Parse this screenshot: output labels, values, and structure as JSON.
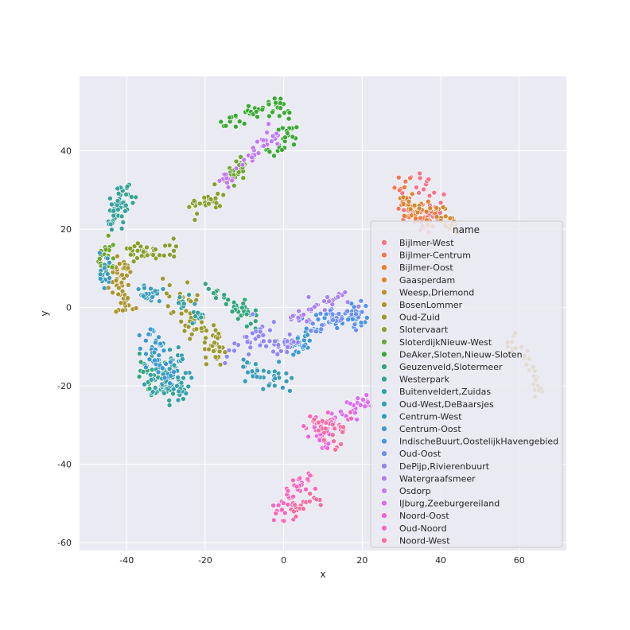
{
  "chart_data": {
    "type": "scatter",
    "xlabel": "x",
    "ylabel": "y",
    "xlim": [
      -52,
      72
    ],
    "ylim": [
      -62,
      59
    ],
    "xticks": [
      -40,
      -20,
      0,
      20,
      40,
      60
    ],
    "yticks": [
      -60,
      -40,
      -20,
      0,
      20,
      40
    ],
    "grid": true,
    "background": "#eaeaf2",
    "legend": {
      "title": "name",
      "placement": "right"
    },
    "series": [
      {
        "name": "Bijlmer-West",
        "color": "#f77189",
        "clusters": [
          {
            "path": [
              [
                30,
                35
              ],
              [
                34,
                33
              ],
              [
                38,
                28
              ],
              [
                40,
                25
              ],
              [
                37,
                22
              ],
              [
                32,
                24
              ],
              [
                30,
                28
              ]
            ],
            "spread": 1.6,
            "n": 40
          }
        ]
      },
      {
        "name": "Bijlmer-Centrum",
        "color": "#f27856",
        "clusters": [
          {
            "path": [
              [
                29,
                34
              ],
              [
                31,
                27
              ],
              [
                33,
                23
              ],
              [
                37,
                22
              ]
            ],
            "spread": 1.5,
            "n": 35
          }
        ]
      },
      {
        "name": "Bijlmer-Oost",
        "color": "#e5802f",
        "clusters": [
          {
            "path": [
              [
                30,
                30
              ],
              [
                32,
                25
              ],
              [
                36,
                24
              ],
              [
                39,
                22
              ]
            ],
            "spread": 1.3,
            "n": 30
          }
        ]
      },
      {
        "name": "Gaasperdam",
        "color": "#cf8a31",
        "clusters": [
          {
            "path": [
              [
                30,
                28
              ],
              [
                34,
                26
              ],
              [
                38,
                25
              ],
              [
                42,
                22
              ],
              [
                44,
                20
              ]
            ],
            "spread": 1.2,
            "n": 30
          }
        ]
      },
      {
        "name": "Weesp,Driemond",
        "color": "#bb9031",
        "clusters": [
          {
            "path": [
              [
                58,
                -8
              ],
              [
                61,
                -12
              ],
              [
                64,
                -17
              ],
              [
                65,
                -22
              ]
            ],
            "spread": 0.8,
            "n": 30
          }
        ]
      },
      {
        "name": "BosenLommer",
        "color": "#ab9531",
        "clusters": [
          {
            "path": [
              [
                -40,
                12
              ],
              [
                -42,
                8
              ],
              [
                -41,
                4
              ],
              [
                -40,
                -1
              ]
            ],
            "spread": 1.2,
            "n": 50
          }
        ]
      },
      {
        "name": "Oud-Zuid",
        "color": "#9b9a31",
        "clusters": [
          {
            "path": [
              [
                -28,
                6
              ],
              [
                -26,
                2
              ],
              [
                -24,
                -3
              ],
              [
                -20,
                -6
              ],
              [
                -18,
                -10
              ],
              [
                -16,
                -12
              ]
            ],
            "spread": 1.6,
            "n": 70
          }
        ]
      },
      {
        "name": "Slotervaart",
        "color": "#88a031",
        "clusters": [
          {
            "path": [
              [
                -40,
                15
              ],
              [
                -36,
                14
              ],
              [
                -32,
                14
              ],
              [
                -28,
                14
              ]
            ],
            "spread": 1.2,
            "n": 40
          },
          {
            "path": [
              [
                -23,
                25
              ],
              [
                -20,
                27
              ],
              [
                -18,
                28
              ]
            ],
            "spread": 1.3,
            "n": 30
          }
        ]
      },
      {
        "name": "SloterdijkNieuw-West",
        "color": "#6ea631",
        "clusters": [
          {
            "path": [
              [
                -44,
                18
              ],
              [
                -45,
                13
              ],
              [
                -45,
                9
              ]
            ],
            "spread": 1.1,
            "n": 25
          },
          {
            "path": [
              [
                -15,
                32
              ],
              [
                -12,
                35
              ],
              [
                -10,
                38
              ]
            ],
            "spread": 1.2,
            "n": 25
          }
        ]
      },
      {
        "name": "DeAker,Sloten,Nieuw-Sloten",
        "color": "#3ba935",
        "clusters": [
          {
            "path": [
              [
                -14,
                46
              ],
              [
                -10,
                49
              ],
              [
                -5,
                51
              ],
              [
                -1,
                52
              ]
            ],
            "spread": 1.2,
            "n": 40
          },
          {
            "path": [
              [
                1,
                50
              ],
              [
                1,
                46
              ],
              [
                0,
                42
              ],
              [
                -4,
                40
              ]
            ],
            "spread": 1.1,
            "n": 30
          }
        ]
      },
      {
        "name": "Geuzenveld,Slotermeer",
        "color": "#33a67c",
        "clusters": [
          {
            "path": [
              [
                -20,
                5
              ],
              [
                -14,
                2
              ],
              [
                -10,
                -1
              ],
              [
                -8,
                -3
              ]
            ],
            "spread": 1.4,
            "n": 40
          },
          {
            "path": [
              [
                -36,
                -13
              ],
              [
                -34,
                -17
              ],
              [
                -30,
                -20
              ]
            ],
            "spread": 1.5,
            "n": 25
          }
        ]
      },
      {
        "name": "Westerpark",
        "color": "#34a391",
        "clusters": [
          {
            "path": [
              [
                -44,
                23
              ],
              [
                -42,
                27
              ],
              [
                -40,
                31
              ]
            ],
            "spread": 1.3,
            "n": 30
          },
          {
            "path": [
              [
                -32,
                -15
              ],
              [
                -30,
                -19
              ],
              [
                -27,
                -22
              ]
            ],
            "spread": 1.6,
            "n": 30
          }
        ]
      },
      {
        "name": "Buitenveldert,Zuidas",
        "color": "#36a19f",
        "clusters": [
          {
            "path": [
              [
                -42,
                28
              ],
              [
                -42,
                24
              ],
              [
                -44,
                20
              ]
            ],
            "spread": 1.2,
            "n": 25
          },
          {
            "path": [
              [
                -26,
                3
              ],
              [
                -24,
                0
              ],
              [
                -22,
                -4
              ]
            ],
            "spread": 1.2,
            "n": 20
          }
        ]
      },
      {
        "name": "Oud-West,DeBaarsjes",
        "color": "#379fac",
        "clusters": [
          {
            "path": [
              [
                -30,
                -10
              ],
              [
                -28,
                -15
              ],
              [
                -26,
                -20
              ],
              [
                -30,
                -22
              ],
              [
                -34,
                -16
              ]
            ],
            "spread": 1.8,
            "n": 70
          }
        ]
      },
      {
        "name": "Centrum-West",
        "color": "#399cbc",
        "clusters": [
          {
            "path": [
              [
                -46,
                14
              ],
              [
                -46,
                10
              ],
              [
                -45,
                6
              ]
            ],
            "spread": 1.0,
            "n": 20
          },
          {
            "path": [
              [
                -36,
                4
              ],
              [
                -34,
                3
              ],
              [
                -32,
                4
              ]
            ],
            "spread": 1.2,
            "n": 25
          },
          {
            "path": [
              [
                -10,
                -14
              ],
              [
                -6,
                -18
              ],
              [
                -2,
                -19
              ],
              [
                2,
                -18
              ]
            ],
            "spread": 1.3,
            "n": 35
          }
        ]
      },
      {
        "name": "Centrum-Oost",
        "color": "#3b99d0",
        "clusters": [
          {
            "path": [
              [
                -34,
                -6
              ],
              [
                -34,
                -10
              ],
              [
                -32,
                -14
              ],
              [
                -28,
                -18
              ]
            ],
            "spread": 1.6,
            "n": 40
          },
          {
            "path": [
              [
                2,
                -12
              ],
              [
                4,
                -9
              ],
              [
                6,
                -6
              ]
            ],
            "spread": 1.2,
            "n": 25
          }
        ]
      },
      {
        "name": "IndischeBuurt,OostelijkHavengebied",
        "color": "#4a94e8",
        "clusters": [
          {
            "path": [
              [
                6,
                -5
              ],
              [
                10,
                -4
              ],
              [
                14,
                -3
              ],
              [
                18,
                -2
              ],
              [
                20,
                -1
              ]
            ],
            "spread": 1.3,
            "n": 45
          }
        ]
      },
      {
        "name": "Oud-Oost",
        "color": "#6f8ef5",
        "clusters": [
          {
            "path": [
              [
                8,
                -6
              ],
              [
                12,
                -3
              ],
              [
                16,
                -2
              ],
              [
                20,
                -3
              ]
            ],
            "spread": 1.3,
            "n": 35
          }
        ]
      },
      {
        "name": "DePijp,Rivierenbuurt",
        "color": "#8f87f4",
        "clusters": [
          {
            "path": [
              [
                -14,
                -12
              ],
              [
                -10,
                -8
              ],
              [
                -6,
                -7
              ],
              [
                -2,
                -8
              ],
              [
                2,
                -10
              ]
            ],
            "spread": 1.6,
            "n": 60
          }
        ]
      },
      {
        "name": "Watergraafsmeer",
        "color": "#a982f3",
        "clusters": [
          {
            "path": [
              [
                2,
                -3
              ],
              [
                6,
                -1
              ],
              [
                10,
                1
              ],
              [
                14,
                2
              ],
              [
                18,
                3
              ]
            ],
            "spread": 1.2,
            "n": 35
          }
        ]
      },
      {
        "name": "Osdorp",
        "color": "#c17af3",
        "clusters": [
          {
            "path": [
              [
                -15,
                32
              ],
              [
                -12,
                34
              ],
              [
                -9,
                38
              ],
              [
                -6,
                41
              ],
              [
                -2,
                44
              ]
            ],
            "spread": 1.3,
            "n": 40
          }
        ]
      },
      {
        "name": "IJburg,Zeeburgereiland",
        "color": "#da6ff1",
        "clusters": [
          {
            "path": [
              [
                22,
                -23
              ],
              [
                20,
                -25
              ],
              [
                16,
                -27
              ],
              [
                12,
                -28
              ]
            ],
            "spread": 1.0,
            "n": 25
          }
        ]
      },
      {
        "name": "Noord-Oost",
        "color": "#ef64dc",
        "clusters": [
          {
            "path": [
              [
                8,
                -30
              ],
              [
                10,
                -33
              ],
              [
                12,
                -36
              ]
            ],
            "spread": 1.2,
            "n": 25
          }
        ]
      },
      {
        "name": "Oud-Noord",
        "color": "#f569bc",
        "clusters": [
          {
            "path": [
              [
                6,
                -30
              ],
              [
                12,
                -29
              ],
              [
                18,
                -27
              ]
            ],
            "spread": 1.2,
            "n": 25
          },
          {
            "path": [
              [
                6,
                -42
              ],
              [
                4,
                -46
              ],
              [
                1,
                -50
              ],
              [
                -2,
                -54
              ]
            ],
            "spread": 1.3,
            "n": 40
          }
        ]
      },
      {
        "name": "Noord-West",
        "color": "#f66ea0",
        "clusters": [
          {
            "path": [
              [
                8,
                -29
              ],
              [
                10,
                -32
              ],
              [
                12,
                -36
              ],
              [
                14,
                -30
              ]
            ],
            "spread": 1.2,
            "n": 25
          },
          {
            "path": [
              [
                2,
                -52
              ],
              [
                5,
                -50
              ],
              [
                8,
                -49
              ]
            ],
            "spread": 1.0,
            "n": 20
          }
        ]
      }
    ]
  }
}
